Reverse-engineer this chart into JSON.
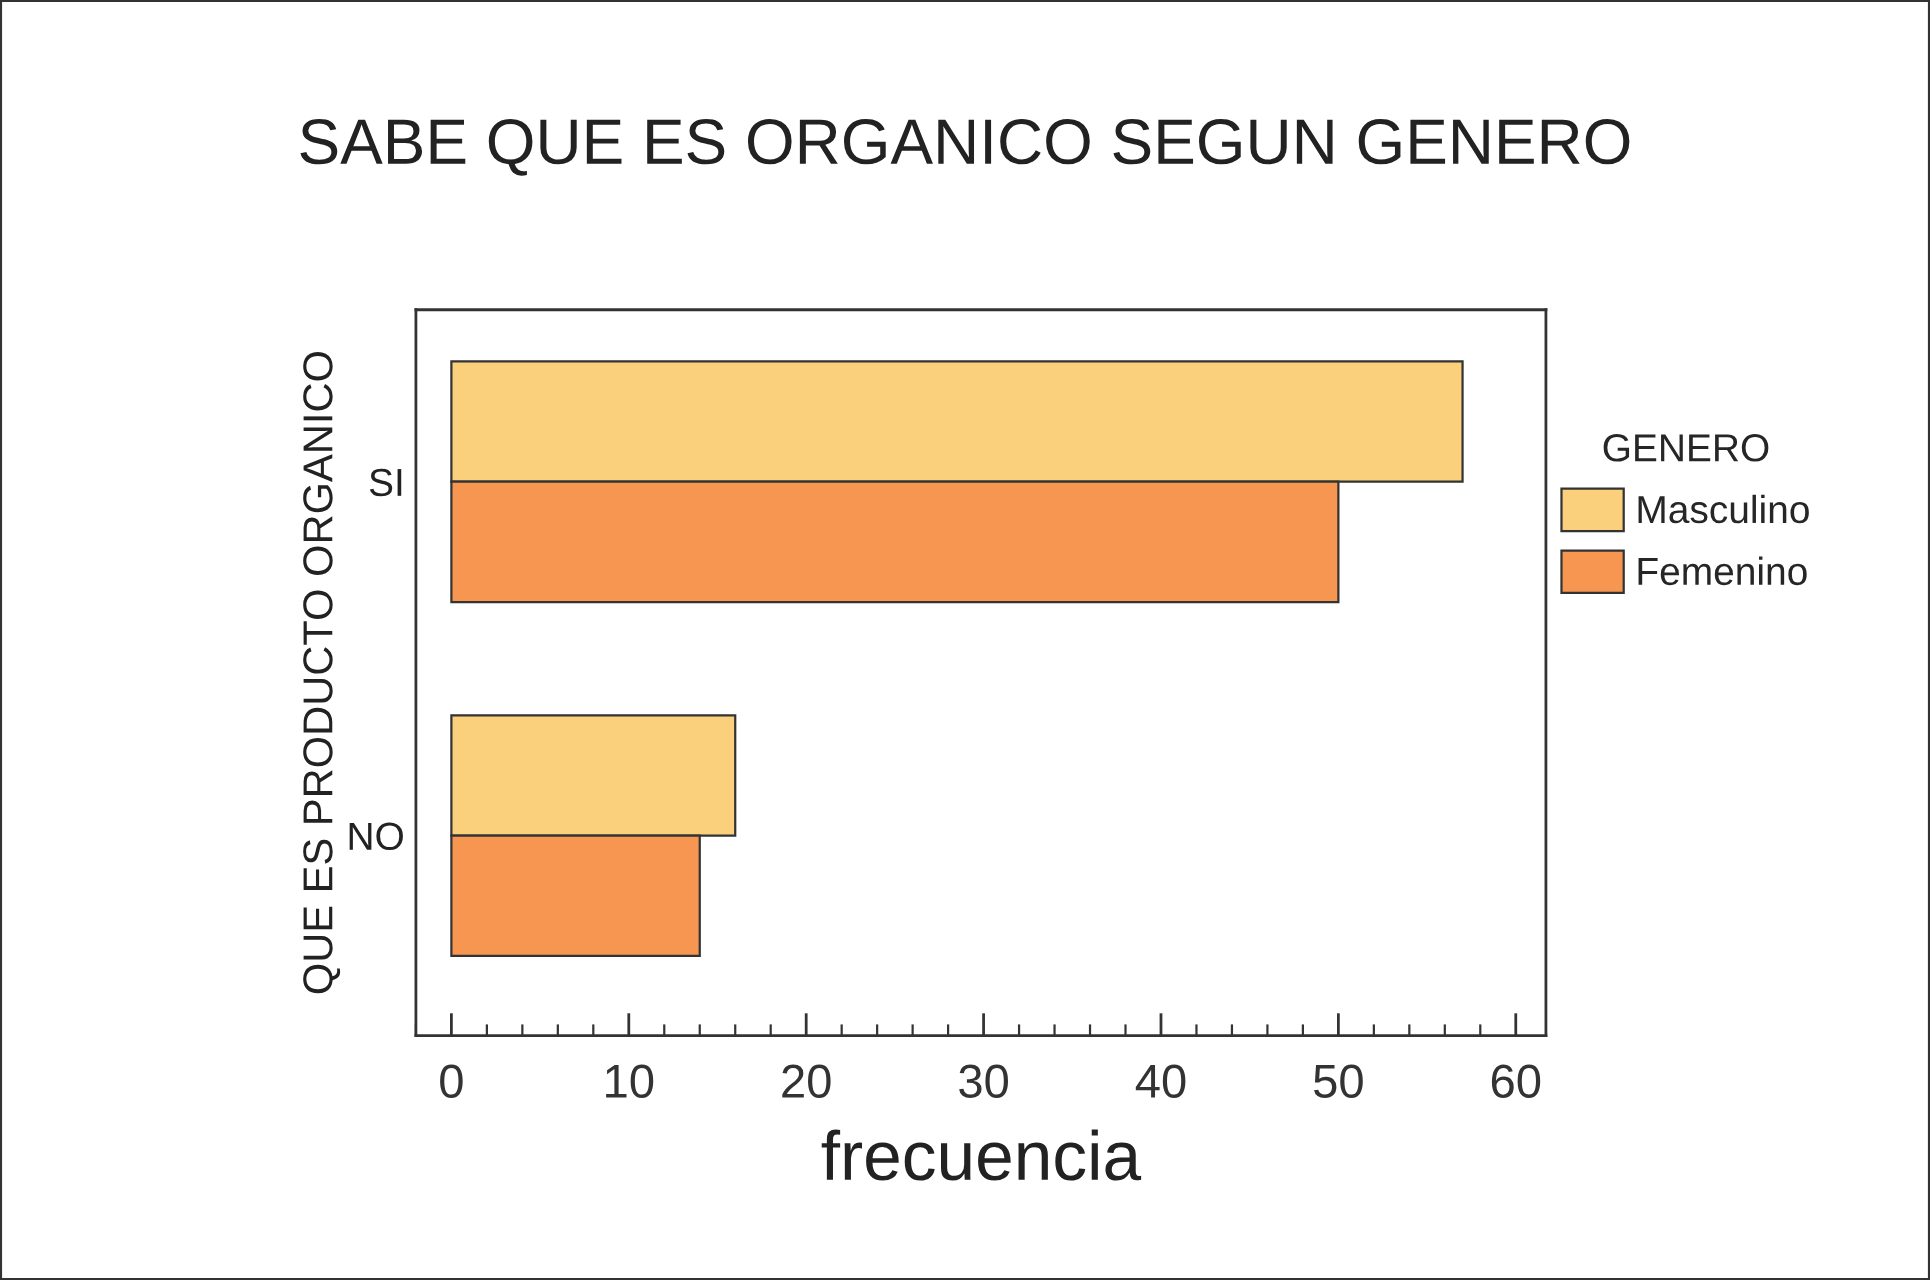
{
  "chart_data": {
    "type": "bar",
    "orientation": "horizontal",
    "title": "SABE QUE ES ORGANICO SEGUN GENERO",
    "xlabel": "frecuencia",
    "ylabel": "QUE ES PRODUCTO ORGANICO",
    "legend_title": "GENERO",
    "legend": "right",
    "categories": [
      "SI",
      "NO"
    ],
    "series": [
      {
        "name": "Masculino",
        "color": "#fad07c",
        "values": [
          57,
          16
        ]
      },
      {
        "name": "Femenino",
        "color": "#f79651",
        "values": [
          50,
          14
        ]
      }
    ],
    "xlim": [
      -2,
      61.7
    ],
    "xticks": [
      0,
      10,
      20,
      30,
      40,
      50,
      60
    ],
    "grid": false
  }
}
